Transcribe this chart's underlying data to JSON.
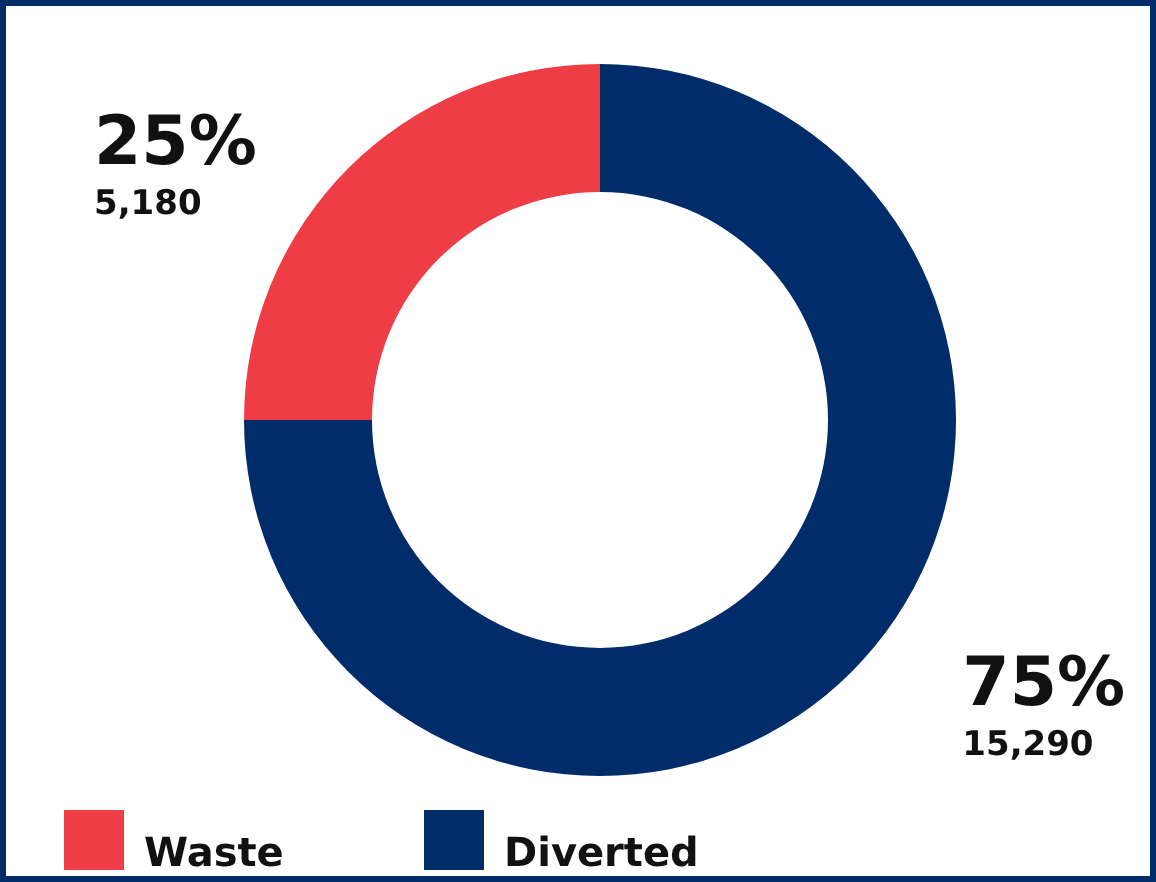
{
  "chart_data": {
    "type": "donut",
    "categories": [
      "Waste",
      "Diverted"
    ],
    "values": [
      25,
      75
    ],
    "colors": [
      "#ef3d45",
      "#002d6a"
    ],
    "value_labels": [
      "25%",
      "75%"
    ],
    "annotations": [
      "5,180",
      "15,290"
    ],
    "legend": "bottom left"
  }
}
